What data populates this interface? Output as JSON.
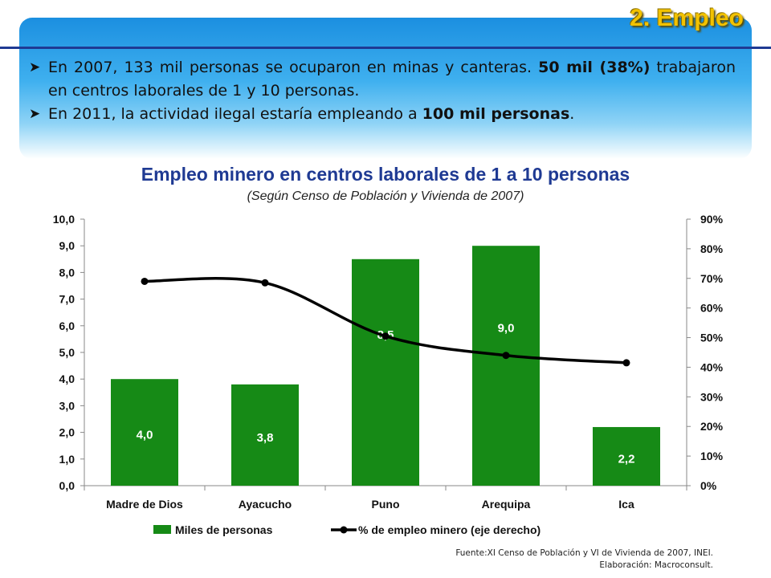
{
  "header": {
    "title": "2.  Empleo"
  },
  "bullets": [
    {
      "segments": [
        {
          "text": "En 2007, 133 mil personas se ocuparon en minas y canteras. ",
          "bold": false
        },
        {
          "text": "50 mil (38%)",
          "bold": true
        },
        {
          "text": " trabajaron en centros laborales de 1 y 10 personas.",
          "bold": false
        }
      ]
    },
    {
      "segments": [
        {
          "text": "En 2011, la actividad ilegal estaría empleando a ",
          "bold": false
        },
        {
          "text": "100 mil personas",
          "bold": true
        },
        {
          "text": ".",
          "bold": false
        }
      ]
    }
  ],
  "chart_data": {
    "type": "bar",
    "title": "Empleo minero en centros laborales de 1 a 10 personas",
    "subtitle": "(Según Censo de Población y Vivienda de 2007)",
    "categories": [
      "Madre de Dios",
      "Ayacucho",
      "Puno",
      "Arequipa",
      "Ica"
    ],
    "series": [
      {
        "name": "Miles de personas",
        "type": "bar",
        "axis": "left",
        "values": [
          4.0,
          3.8,
          8.5,
          9.0,
          2.2
        ],
        "data_labels": [
          "4,0",
          "3,8",
          "8,5",
          "9,0",
          "2,2"
        ],
        "color": "#168a16"
      },
      {
        "name": "% de empleo minero (eje derecho)",
        "type": "line",
        "axis": "right",
        "values": [
          69,
          68.5,
          50.5,
          44,
          41.5
        ],
        "color": "#000000"
      }
    ],
    "y_left": {
      "ylim": [
        0,
        10
      ],
      "ticks": [
        "0,0",
        "1,0",
        "2,0",
        "3,0",
        "4,0",
        "5,0",
        "6,0",
        "7,0",
        "8,0",
        "9,0",
        "10,0"
      ]
    },
    "y_right": {
      "ylim": [
        0,
        90
      ],
      "ticks": [
        "0%",
        "10%",
        "20%",
        "30%",
        "40%",
        "50%",
        "60%",
        "70%",
        "80%",
        "90%"
      ]
    },
    "grid": false,
    "legend_position": "bottom"
  },
  "footer": {
    "source": "Fuente:XI Censo  de Población y VI de Vivienda de 2007, INEI.",
    "elaboration": "Elaboración:  Macroconsult."
  }
}
